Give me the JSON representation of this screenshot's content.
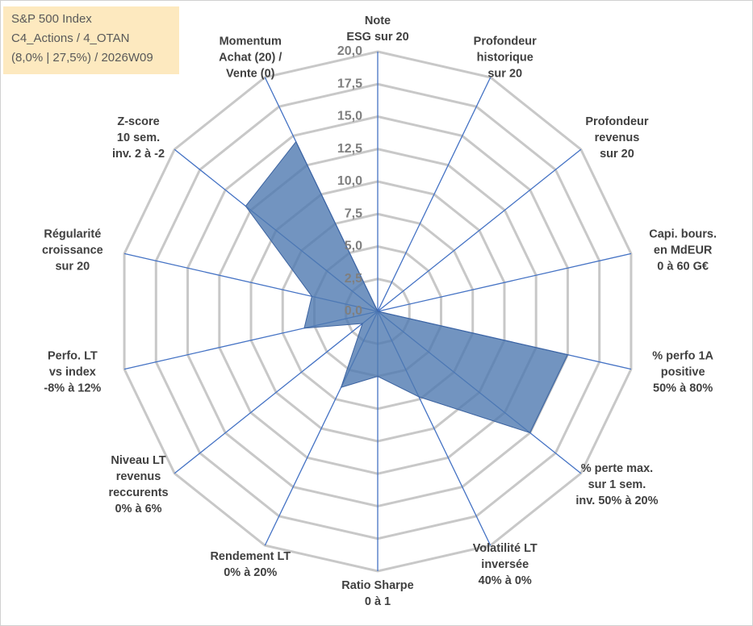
{
  "chart_data": {
    "type": "radar",
    "title": [
      "S&P 500 Index",
      "C4_Actions / 4_OTAN",
      "(8,0% | 27,5%) / 2026W09"
    ],
    "categories": [
      [
        "Note",
        "ESG sur 20"
      ],
      [
        "Profondeur",
        "historique",
        "sur 20"
      ],
      [
        "Profondeur",
        "revenus",
        "sur 20"
      ],
      [
        "Capi. bours.",
        "en MdEUR",
        "0 à 60 G€"
      ],
      [
        "% perfo 1A",
        "positive",
        "50% à 80%"
      ],
      [
        "% perte max.",
        "sur 1 sem.",
        "inv. 50% à 20%"
      ],
      [
        "Volatilité LT",
        "inversée",
        "40% à 0%"
      ],
      [
        "Ratio Sharpe",
        "0 à 1"
      ],
      [
        "Rendement LT",
        "0% à 20%"
      ],
      [
        "Niveau LT",
        "revenus",
        "reccurents",
        "0% à 6%"
      ],
      [
        "Perfo. LT",
        "vs index",
        "-8% à 12%"
      ],
      [
        "Régularité",
        "croissance",
        "sur 20"
      ],
      [
        "Z-score",
        "10 sem.",
        "inv. 2 à -2"
      ],
      [
        "Momentum",
        "Achat (20) /",
        "Vente (0)"
      ]
    ],
    "values": [
      0,
      0,
      0,
      0,
      15,
      15,
      7.3,
      5,
      6.5,
      1.5,
      5.8,
      5.2,
      13,
      14.5
    ],
    "color": "#4f79b0",
    "rlim": [
      0,
      20
    ],
    "rticks": [
      {
        "value": 0,
        "label": "0,0"
      },
      {
        "value": 2.5,
        "label": "2,5"
      },
      {
        "value": 5,
        "label": "5,0"
      },
      {
        "value": 7.5,
        "label": "7,5"
      },
      {
        "value": 10,
        "label": "10,0"
      },
      {
        "value": 12.5,
        "label": "12,5"
      },
      {
        "value": 15,
        "label": "15,0"
      },
      {
        "value": 17.5,
        "label": "17,5"
      },
      {
        "value": 20,
        "label": "20,0"
      }
    ],
    "grid": true
  }
}
